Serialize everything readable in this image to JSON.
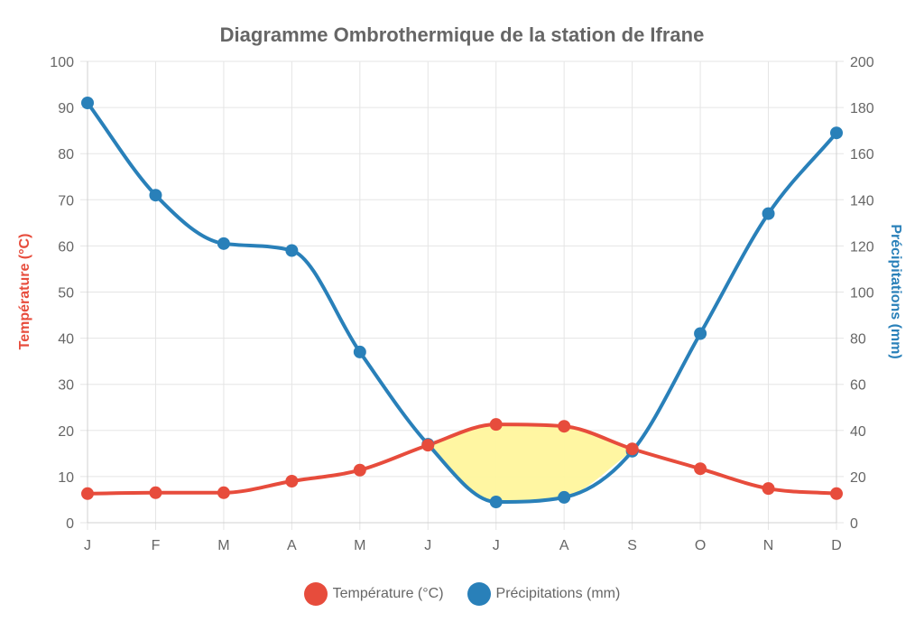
{
  "chart_data": {
    "type": "line",
    "title": "Diagramme Ombrothermique de la station de Ifrane",
    "categories": [
      "J",
      "F",
      "M",
      "A",
      "M",
      "J",
      "J",
      "A",
      "S",
      "O",
      "N",
      "D"
    ],
    "series": [
      {
        "name": "Température (°C)",
        "axis": "left",
        "color": "#e74c3c",
        "values": [
          6.3,
          6.5,
          6.5,
          9.0,
          11.4,
          16.8,
          21.3,
          20.9,
          16.0,
          11.7,
          7.4,
          6.3
        ]
      },
      {
        "name": "Précipitations (mm)",
        "axis": "right",
        "color": "#2980b9",
        "values": [
          182,
          142,
          121,
          118,
          74,
          34,
          9,
          11,
          31,
          82,
          134,
          169
        ]
      }
    ],
    "ylabel": "Température (°C)",
    "y2label": "Précipitations (mm)",
    "xlabel": "",
    "ylim": [
      0,
      100
    ],
    "y2lim": [
      0,
      200
    ],
    "yticks": [
      0,
      10,
      20,
      30,
      40,
      50,
      60,
      70,
      80,
      90,
      100
    ],
    "y2ticks": [
      0,
      20,
      40,
      60,
      80,
      100,
      120,
      140,
      160,
      180,
      200
    ],
    "grid": true,
    "legend_position": "bottom",
    "dry_period_fill": "#fff59d",
    "annotations": [
      "Dry season area shaded yellow where precipitation curve (P) < 2T, roughly June–September"
    ]
  },
  "legend": {
    "items": [
      {
        "label": "Température (°C)",
        "color": "#e74c3c"
      },
      {
        "label": "Précipitations (mm)",
        "color": "#2980b9"
      }
    ]
  }
}
